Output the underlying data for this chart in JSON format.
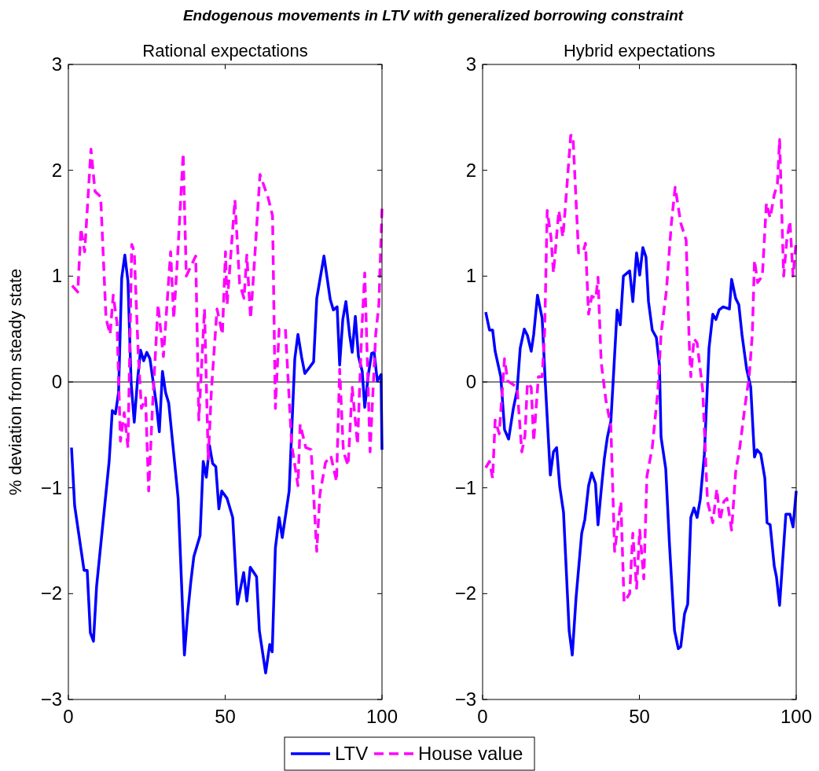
{
  "chart_data": [
    {
      "type": "line",
      "title": "Endogenous movements in LTV with generalized borrowing constraint",
      "subtitle": "Rational expectations",
      "ylabel": "% deviation from steady state",
      "xlim": [
        0,
        100
      ],
      "ylim": [
        -3,
        3
      ],
      "xticks": [
        0,
        50,
        100
      ],
      "yticks": [
        {
          "value": -3,
          "label": "−3"
        },
        {
          "value": -2,
          "label": "−2"
        },
        {
          "value": -1,
          "label": "−1"
        },
        0,
        1,
        2,
        3
      ],
      "grid": false,
      "legend": "bottom",
      "ref_lines": [
        {
          "axis": "y",
          "value": 0,
          "color": "#000000"
        }
      ],
      "series": [
        {
          "name": "LTV",
          "color": "#0000ff",
          "line_style": "solid",
          "x": [
            1,
            2,
            5,
            6,
            7,
            8,
            9,
            13,
            14,
            15,
            16,
            17,
            18,
            19,
            20,
            21,
            22,
            23,
            24,
            25,
            26,
            28,
            29,
            30,
            31,
            32,
            35,
            37,
            38,
            39,
            40,
            42,
            43,
            44,
            45,
            46,
            47,
            48,
            48.9,
            50.6,
            52.4,
            53.9,
            55.9,
            56.9,
            58,
            60,
            60.9,
            62.9,
            64.2,
            65,
            66,
            67.2,
            68.2,
            70.4,
            72.2,
            73.2,
            74.4,
            75.4,
            76.7,
            78.2,
            79.2,
            81.5,
            83.5,
            84.5,
            85.7,
            86.5,
            87.5,
            88.5,
            89.7,
            90.5,
            91.5,
            92.5,
            93.7,
            94.5,
            95.7,
            96.7,
            97.5,
            98.5,
            99.7,
            100
          ],
          "values": [
            -0.62,
            -1.17,
            -1.78,
            -1.78,
            -2.37,
            -2.45,
            -1.93,
            -0.75,
            -0.27,
            -0.3,
            -0.1,
            0.98,
            1.2,
            0.95,
            0.0,
            -0.38,
            0.0,
            0.3,
            0.2,
            0.28,
            0.22,
            -0.2,
            -0.47,
            0.1,
            -0.1,
            -0.2,
            -1.1,
            -2.58,
            -2.2,
            -1.9,
            -1.65,
            -1.45,
            -0.75,
            -0.9,
            -0.6,
            -0.77,
            -0.8,
            -1.2,
            -1.03,
            -1.1,
            -1.28,
            -2.1,
            -1.8,
            -2.07,
            -1.75,
            -1.84,
            -2.35,
            -2.75,
            -2.48,
            -2.55,
            -1.57,
            -1.28,
            -1.47,
            -1.03,
            0.22,
            0.45,
            0.23,
            0.08,
            0.13,
            0.19,
            0.79,
            1.19,
            0.78,
            0.68,
            0.71,
            0.16,
            0.59,
            0.76,
            0.44,
            0.28,
            0.62,
            0.24,
            0.1,
            -0.24,
            0.08,
            0.27,
            0.28,
            0.01,
            0.07,
            -0.64
          ]
        },
        {
          "name": "House value",
          "color": "#ff00ff",
          "line_style": "dashed",
          "x": [
            1.2,
            3,
            4,
            5.2,
            7.2,
            8.5,
            10.3,
            12,
            13.3,
            14.3,
            15.5,
            16.6,
            17.8,
            19,
            20.2,
            21,
            22.3,
            23.3,
            24.6,
            25.6,
            26.8,
            28.6,
            30.3,
            32.6,
            33.6,
            34.8,
            36.6,
            37.6,
            40.6,
            41.6,
            43.4,
            44.6,
            45.6,
            47.4,
            49.1,
            50.1,
            50.6,
            53.1,
            54.6,
            56,
            56.9,
            58.1,
            59.1,
            61.1,
            63.7,
            65.1,
            66,
            67.2,
            69.2,
            71.2,
            73.2,
            73.9,
            75.7,
            77.4,
            79.2,
            80.2,
            82,
            83.7,
            85.5,
            86.5,
            87.7,
            89.2,
            90.5,
            92.2,
            93.5,
            94.5,
            96.2,
            98,
            99,
            100
          ],
          "values": [
            0.91,
            0.85,
            1.45,
            1.23,
            2.2,
            1.8,
            1.75,
            0.6,
            0.45,
            0.82,
            0.56,
            -0.56,
            -0.29,
            -0.62,
            1.3,
            1.23,
            0.25,
            -0.25,
            -0.15,
            -1.03,
            -0.25,
            0.73,
            0.24,
            1.23,
            0.6,
            1.17,
            2.16,
            1.0,
            1.19,
            -0.36,
            0.69,
            -0.73,
            -0.08,
            0.69,
            0.45,
            1.23,
            0.73,
            1.72,
            0.93,
            0.79,
            1.2,
            0.6,
            1.03,
            1.96,
            1.74,
            1.57,
            -0.25,
            0.5,
            0.5,
            -0.59,
            -0.98,
            -0.4,
            -0.62,
            -0.64,
            -1.6,
            -1.06,
            -0.76,
            -0.7,
            -0.94,
            0.12,
            -0.66,
            -0.79,
            -0.05,
            -0.59,
            0.45,
            1.03,
            -0.66,
            0.45,
            0.73,
            1.64
          ]
        }
      ]
    },
    {
      "type": "line",
      "subtitle": "Hybrid expectations",
      "xlim": [
        0,
        100
      ],
      "ylim": [
        -3,
        3
      ],
      "xticks": [
        0,
        50,
        100
      ],
      "yticks": [
        {
          "value": -3,
          "label": "−3"
        },
        {
          "value": -2,
          "label": "−2"
        },
        {
          "value": -1,
          "label": "−1"
        },
        0,
        1,
        2,
        3
      ],
      "grid": false,
      "legend": "bottom",
      "ref_lines": [
        {
          "axis": "y",
          "value": 0,
          "color": "#000000"
        }
      ],
      "series": [
        {
          "name": "LTV",
          "color": "#0000ff",
          "line_style": "solid",
          "x": [
            1,
            2.2,
            3.2,
            4,
            5.8,
            7,
            8.3,
            9.8,
            11,
            12,
            13.3,
            14.3,
            15.5,
            16.3,
            17.5,
            19,
            20,
            21.6,
            22.6,
            23.6,
            24.6,
            25.8,
            27.6,
            28.6,
            29.8,
            31.6,
            32.6,
            33.8,
            34.8,
            36,
            36.8,
            37.8,
            38.8,
            39.8,
            40.9,
            41.6,
            42.9,
            43.9,
            44.9,
            46.9,
            47.9,
            49.1,
            50.1,
            51.1,
            52.1,
            52.9,
            54.1,
            55.4,
            56.4,
            56.9,
            58.4,
            59.6,
            61.2,
            62.4,
            63.2,
            64.4,
            65.4,
            66.4,
            67.4,
            68.4,
            69.4,
            70.7,
            72.2,
            73.4,
            74.4,
            75.4,
            76.7,
            78.7,
            79.4,
            80.7,
            81.7,
            82.7,
            84.2,
            85.5,
            86.7,
            87.5,
            88.7,
            90,
            90.7,
            91.7,
            93,
            93.7,
            94.7,
            96.7,
            98,
            99,
            100
          ],
          "values": [
            0.66,
            0.49,
            0.49,
            0.29,
            0.05,
            -0.45,
            -0.54,
            -0.25,
            -0.08,
            0.32,
            0.5,
            0.44,
            0.29,
            0.45,
            0.82,
            0.6,
            -0.01,
            -0.88,
            -0.66,
            -0.62,
            -0.99,
            -1.23,
            -2.35,
            -2.58,
            -2.04,
            -1.43,
            -1.3,
            -0.98,
            -0.86,
            -0.96,
            -1.35,
            -1.03,
            -0.73,
            -0.52,
            -0.37,
            -0.01,
            0.68,
            0.54,
            1.0,
            1.05,
            0.76,
            1.22,
            1.01,
            1.27,
            1.18,
            0.76,
            0.49,
            0.42,
            0.16,
            -0.52,
            -0.82,
            -1.54,
            -2.35,
            -2.52,
            -2.5,
            -2.19,
            -2.1,
            -1.28,
            -1.19,
            -1.28,
            -1.11,
            -0.69,
            0.32,
            0.64,
            0.59,
            0.68,
            0.71,
            0.69,
            0.97,
            0.79,
            0.73,
            0.45,
            0.12,
            -0.05,
            -0.71,
            -0.64,
            -0.68,
            -0.91,
            -1.33,
            -1.35,
            -1.74,
            -1.84,
            -2.11,
            -1.25,
            -1.25,
            -1.37,
            -1.03
          ]
        },
        {
          "name": "House value",
          "color": "#ff00ff",
          "line_style": "dashed",
          "x": [
            1,
            2.2,
            3.2,
            4,
            5.3,
            7,
            8,
            11,
            12.5,
            13.5,
            14.3,
            15.5,
            16.3,
            17.8,
            19,
            19.8,
            20.6,
            21.8,
            22.6,
            24.3,
            25.6,
            26.3,
            28.1,
            28.8,
            30.6,
            32.1,
            32.8,
            33.8,
            34.8,
            36.1,
            36.8,
            37.8,
            39.3,
            40.9,
            42.1,
            44.1,
            45.1,
            46.9,
            47.9,
            49.1,
            50.1,
            51.4,
            52.4,
            54.1,
            55.9,
            56.9,
            58.6,
            60.2,
            61.4,
            63.2,
            64.9,
            65.9,
            66.4,
            67.4,
            68.4,
            70.2,
            71.7,
            73.4,
            74.7,
            75.7,
            76.9,
            77.9,
            79.4,
            80.7,
            82,
            83.7,
            85,
            86,
            86.7,
            87.7,
            89.2,
            90.5,
            91.7,
            93,
            94,
            94.7,
            96,
            97,
            98,
            99,
            100
          ],
          "values": [
            -0.81,
            -0.75,
            -0.91,
            -0.36,
            -0.49,
            0.22,
            0.01,
            -0.05,
            -0.66,
            -0.51,
            -0.01,
            -0.05,
            -0.56,
            0.05,
            0.05,
            0.49,
            1.62,
            1.37,
            1.03,
            1.62,
            1.37,
            1.62,
            2.33,
            2.33,
            1.22,
            1.23,
            1.31,
            0.64,
            0.81,
            0.79,
            0.99,
            0.19,
            -0.17,
            -0.42,
            -1.6,
            -1.13,
            -2.08,
            -2.0,
            -1.43,
            -1.95,
            -1.4,
            -1.86,
            -0.89,
            -0.62,
            -0.08,
            0.45,
            0.86,
            1.5,
            1.84,
            1.5,
            1.34,
            0.36,
            0.05,
            0.41,
            0.37,
            -0.08,
            -1.13,
            -1.33,
            -1.01,
            -1.31,
            -1.13,
            -1.1,
            -1.4,
            -0.85,
            -0.62,
            -0.22,
            0.05,
            0.45,
            1.15,
            0.94,
            1.0,
            1.69,
            1.55,
            1.77,
            1.87,
            2.29,
            1.0,
            1.34,
            1.52,
            1.0,
            1.34
          ]
        }
      ]
    }
  ]
}
